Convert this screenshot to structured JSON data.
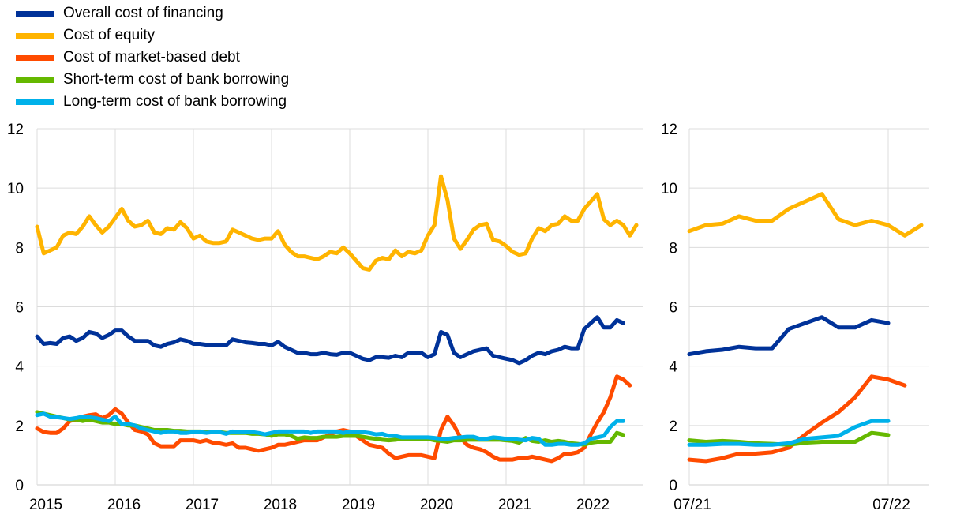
{
  "chart_data": [
    {
      "type": "line",
      "panel": "full-period",
      "x_start": "2015-01",
      "frequency": "monthly",
      "x_ticks": [
        "2015",
        "2016",
        "2017",
        "2018",
        "2019",
        "2020",
        "2021",
        "2022"
      ],
      "y_ticks": [
        "0",
        "2",
        "4",
        "6",
        "8",
        "10",
        "12"
      ],
      "ylim": [
        0,
        12
      ],
      "grid": true,
      "legend_position": "top-left",
      "series": [
        {
          "name": "Overall cost of financing",
          "color": "#003299",
          "values": [
            5.0,
            4.75,
            4.78,
            4.75,
            4.95,
            5.0,
            4.85,
            4.95,
            5.15,
            5.1,
            4.95,
            5.05,
            5.2,
            5.2,
            5.0,
            4.85,
            4.85,
            4.85,
            4.7,
            4.65,
            4.75,
            4.8,
            4.9,
            4.85,
            4.75,
            4.75,
            4.72,
            4.7,
            4.7,
            4.7,
            4.9,
            4.85,
            4.8,
            4.78,
            4.75,
            4.75,
            4.7,
            4.82,
            4.65,
            4.55,
            4.45,
            4.45,
            4.4,
            4.4,
            4.45,
            4.4,
            4.38,
            4.45,
            4.45,
            4.35,
            4.25,
            4.2,
            4.3,
            4.3,
            4.28,
            4.35,
            4.3,
            4.45,
            4.45,
            4.45,
            4.3,
            4.4,
            5.15,
            5.05,
            4.45,
            4.3,
            4.4,
            4.5,
            4.55,
            4.6,
            4.35,
            4.3,
            4.25,
            4.2,
            4.1,
            4.2,
            4.35,
            4.45,
            4.4,
            4.5,
            4.55,
            4.65,
            4.6,
            4.6,
            5.25,
            5.45,
            5.65,
            5.3,
            5.3,
            5.55,
            5.45
          ]
        },
        {
          "name": "Cost of equity",
          "color": "#FFB400",
          "values": [
            8.7,
            7.8,
            7.9,
            8.0,
            8.4,
            8.5,
            8.45,
            8.7,
            9.05,
            8.75,
            8.5,
            8.7,
            9.0,
            9.3,
            8.9,
            8.7,
            8.75,
            8.9,
            8.5,
            8.45,
            8.65,
            8.6,
            8.85,
            8.65,
            8.3,
            8.4,
            8.2,
            8.15,
            8.15,
            8.2,
            8.6,
            8.5,
            8.4,
            8.3,
            8.25,
            8.3,
            8.3,
            8.55,
            8.1,
            7.85,
            7.7,
            7.7,
            7.65,
            7.6,
            7.7,
            7.85,
            7.8,
            8.0,
            7.8,
            7.55,
            7.3,
            7.25,
            7.55,
            7.65,
            7.6,
            7.9,
            7.7,
            7.85,
            7.8,
            7.9,
            8.4,
            8.75,
            10.4,
            9.6,
            8.3,
            7.95,
            8.25,
            8.6,
            8.75,
            8.8,
            8.25,
            8.2,
            8.05,
            7.85,
            7.75,
            7.8,
            8.3,
            8.65,
            8.55,
            8.75,
            8.8,
            9.05,
            8.9,
            8.9,
            9.3,
            9.55,
            9.8,
            8.95,
            8.75,
            8.9,
            8.75,
            8.4,
            8.75
          ]
        },
        {
          "name": "Cost of market-based debt",
          "color": "#FF4B00",
          "values": [
            1.9,
            1.78,
            1.75,
            1.75,
            1.9,
            2.15,
            2.2,
            2.3,
            2.35,
            2.38,
            2.25,
            2.35,
            2.55,
            2.4,
            2.1,
            1.85,
            1.8,
            1.7,
            1.4,
            1.3,
            1.3,
            1.3,
            1.5,
            1.5,
            1.5,
            1.45,
            1.5,
            1.42,
            1.4,
            1.35,
            1.4,
            1.25,
            1.25,
            1.2,
            1.15,
            1.2,
            1.25,
            1.35,
            1.35,
            1.4,
            1.45,
            1.5,
            1.5,
            1.5,
            1.6,
            1.7,
            1.8,
            1.85,
            1.8,
            1.65,
            1.5,
            1.35,
            1.3,
            1.25,
            1.05,
            0.9,
            0.95,
            1.0,
            1.0,
            1.0,
            0.95,
            0.9,
            1.85,
            2.3,
            2.0,
            1.6,
            1.35,
            1.25,
            1.2,
            1.1,
            0.95,
            0.85,
            0.85,
            0.85,
            0.9,
            0.9,
            0.95,
            0.9,
            0.85,
            0.8,
            0.9,
            1.05,
            1.05,
            1.1,
            1.25,
            1.7,
            2.1,
            2.45,
            2.95,
            3.65,
            3.55,
            3.35
          ]
        },
        {
          "name": "Short-term cost of bank borrowing",
          "color": "#65B800",
          "values": [
            2.45,
            2.4,
            2.35,
            2.3,
            2.25,
            2.2,
            2.2,
            2.15,
            2.2,
            2.15,
            2.1,
            2.1,
            2.05,
            2.05,
            2.0,
            2.0,
            1.95,
            1.9,
            1.85,
            1.85,
            1.85,
            1.82,
            1.82,
            1.8,
            1.8,
            1.8,
            1.78,
            1.78,
            1.78,
            1.75,
            1.75,
            1.75,
            1.75,
            1.72,
            1.72,
            1.7,
            1.65,
            1.7,
            1.7,
            1.65,
            1.55,
            1.6,
            1.58,
            1.58,
            1.62,
            1.62,
            1.62,
            1.65,
            1.65,
            1.65,
            1.62,
            1.58,
            1.55,
            1.52,
            1.5,
            1.52,
            1.55,
            1.55,
            1.55,
            1.55,
            1.55,
            1.5,
            1.48,
            1.45,
            1.5,
            1.5,
            1.52,
            1.52,
            1.52,
            1.52,
            1.52,
            1.52,
            1.5,
            1.48,
            1.42,
            1.58,
            1.48,
            1.45,
            1.5,
            1.45,
            1.48,
            1.45,
            1.4,
            1.38,
            1.35,
            1.42,
            1.45,
            1.45,
            1.45,
            1.75,
            1.68
          ]
        },
        {
          "name": "Long-term cost of bank borrowing",
          "color": "#00B1EA",
          "values": [
            2.35,
            2.4,
            2.3,
            2.28,
            2.25,
            2.22,
            2.25,
            2.3,
            2.28,
            2.25,
            2.2,
            2.15,
            2.3,
            2.05,
            2.05,
            2.0,
            1.9,
            1.85,
            1.8,
            1.75,
            1.8,
            1.8,
            1.75,
            1.75,
            1.78,
            1.78,
            1.75,
            1.78,
            1.78,
            1.72,
            1.8,
            1.78,
            1.78,
            1.78,
            1.75,
            1.7,
            1.75,
            1.8,
            1.8,
            1.8,
            1.8,
            1.8,
            1.75,
            1.8,
            1.8,
            1.8,
            1.8,
            1.75,
            1.8,
            1.78,
            1.78,
            1.75,
            1.7,
            1.72,
            1.65,
            1.65,
            1.6,
            1.6,
            1.6,
            1.6,
            1.6,
            1.58,
            1.55,
            1.55,
            1.58,
            1.6,
            1.62,
            1.62,
            1.55,
            1.55,
            1.6,
            1.58,
            1.55,
            1.55,
            1.52,
            1.5,
            1.58,
            1.55,
            1.35,
            1.35,
            1.38,
            1.38,
            1.35,
            1.35,
            1.4,
            1.55,
            1.6,
            1.65,
            1.95,
            2.15,
            2.15
          ]
        }
      ]
    },
    {
      "type": "line",
      "panel": "zoom",
      "x_start": "2021-07",
      "x_start_index": 78,
      "frequency": "monthly",
      "x_ticks": [
        "07/21",
        "07/22"
      ],
      "y_ticks": [
        "0",
        "2",
        "4",
        "6",
        "8",
        "10",
        "12"
      ],
      "ylim": [
        0,
        12
      ],
      "grid": true,
      "note": "same series as full-period panel, shown from 07/21"
    }
  ]
}
